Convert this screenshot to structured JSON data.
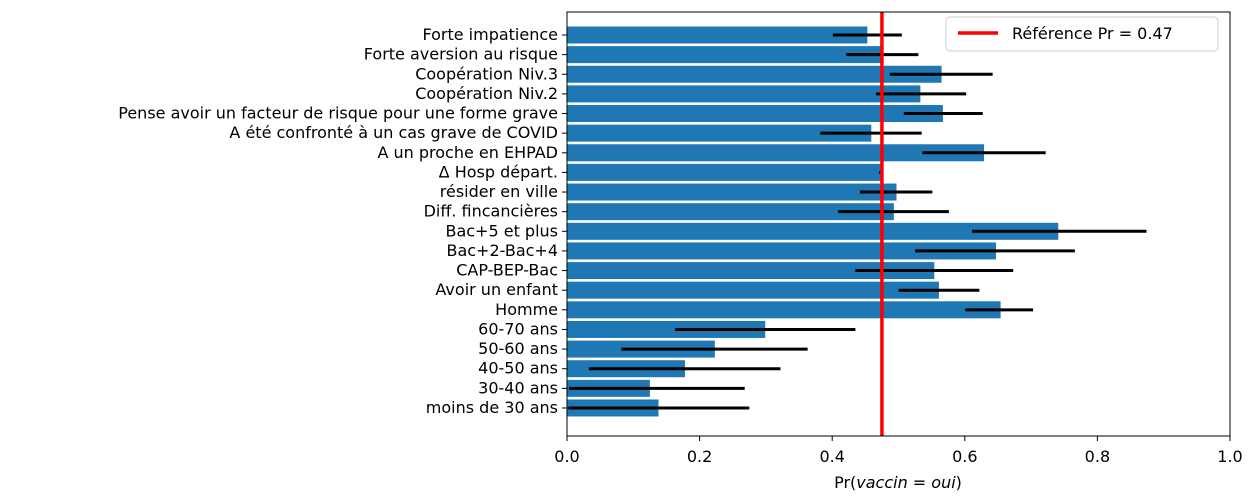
{
  "chart_data": {
    "type": "bar",
    "orientation": "horizontal",
    "categories": [
      "Forte impatience",
      "Forte aversion au risque",
      "Coopération Niv.3",
      "Coopération Niv.2",
      "Pense avoir un facteur de risque pour une forme grave",
      "A été confronté à un cas grave de COVID",
      "A un proche en EHPAD",
      "Δ Hosp départ.",
      "résider en ville",
      "Diff. fincancières",
      "Bac+5 et plus",
      "Bac+2-Bac+4",
      "CAP-BEP-Bac",
      "Avoir un enfant",
      "Homme",
      "60-70 ans",
      "50-60 ans",
      "40-50 ans",
      "30-40 ans",
      "moins de 30 ans"
    ],
    "values": [
      0.453,
      0.473,
      0.565,
      0.533,
      0.567,
      0.459,
      0.629,
      0.473,
      0.497,
      0.493,
      0.741,
      0.647,
      0.554,
      0.561,
      0.654,
      0.299,
      0.223,
      0.178,
      0.125,
      0.138
    ],
    "err_low": [
      0.401,
      0.421,
      0.487,
      0.466,
      0.508,
      0.382,
      0.536,
      0.471,
      0.442,
      0.409,
      0.611,
      0.525,
      0.435,
      0.5,
      0.601,
      0.163,
      0.082,
      0.033,
      0.003,
      0.002
    ],
    "err_high": [
      0.505,
      0.53,
      0.642,
      0.602,
      0.627,
      0.535,
      0.722,
      0.475,
      0.551,
      0.576,
      0.874,
      0.766,
      0.673,
      0.622,
      0.703,
      0.435,
      0.363,
      0.322,
      0.268,
      0.275
    ],
    "xlabel_prefix": "Pr(",
    "xlabel_italic": "vaccin = oui",
    "xlabel_suffix": ")",
    "xlim": [
      0.0,
      1.0
    ],
    "xticks": [
      "0.0",
      "0.2",
      "0.4",
      "0.6",
      "0.8",
      "1.0"
    ],
    "reference_line": {
      "value": 0.475,
      "label": "Référence Pr = 0.47"
    },
    "legend_position": "top-right",
    "grid": false,
    "colors": {
      "bar": "#1f77b4",
      "error": "#000000",
      "reference": "#ff0000"
    }
  }
}
